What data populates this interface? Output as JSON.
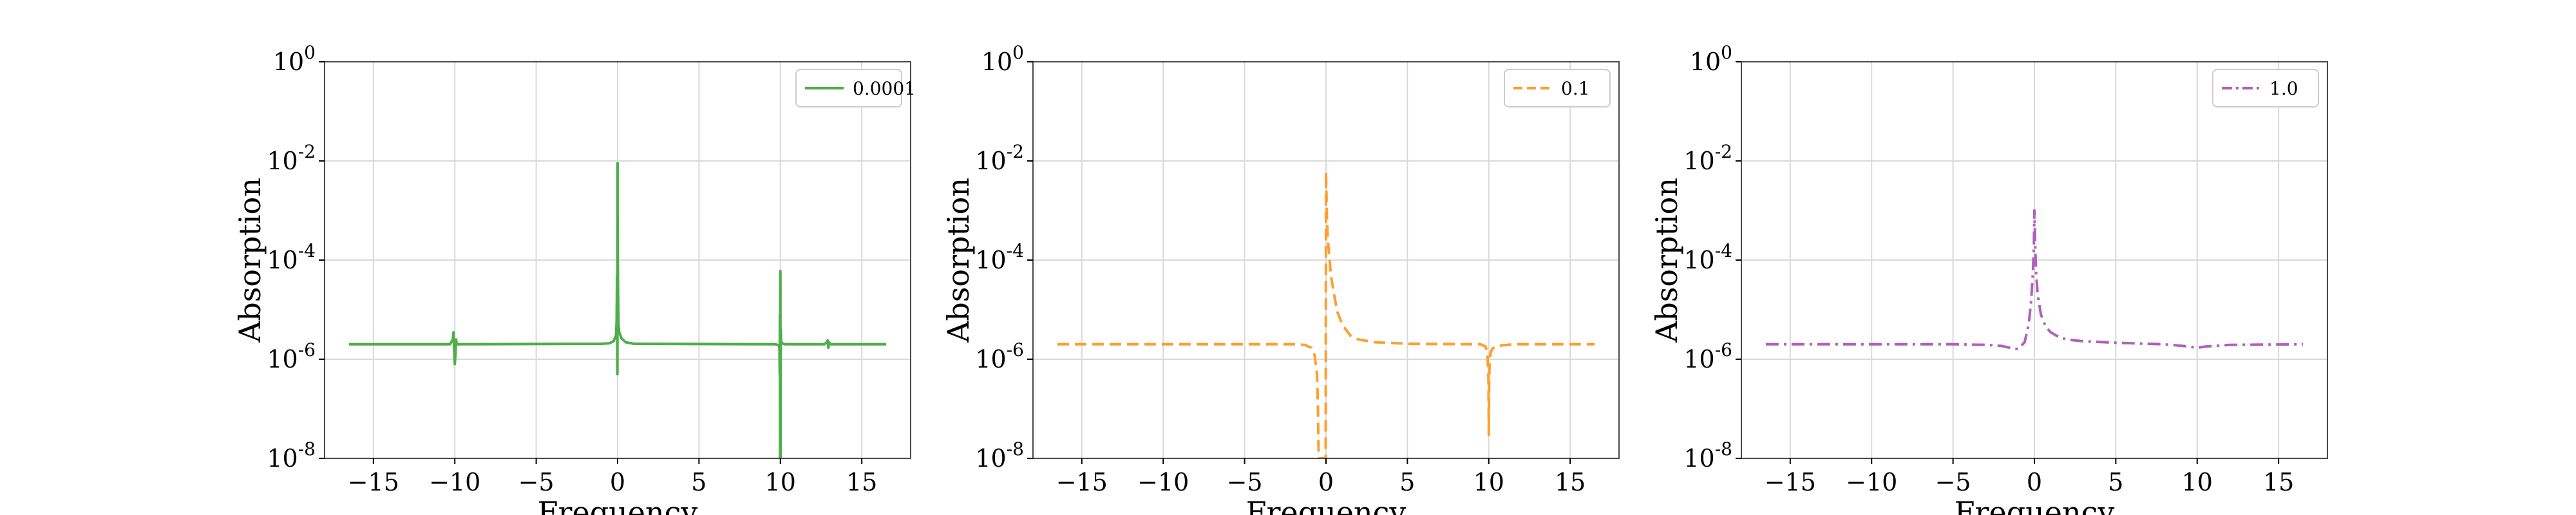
{
  "figure": {
    "background": "#ffffff"
  },
  "chart_data": [
    {
      "type": "line",
      "xlabel": "Frequency",
      "ylabel": "Absorption",
      "xlim": [
        -18,
        18
      ],
      "ylim": [
        1e-08,
        1
      ],
      "yscale": "log",
      "xticks": [
        -15,
        -10,
        -5,
        0,
        5,
        10,
        15
      ],
      "xtick_labels": [
        "−15",
        "−10",
        "−5",
        "0",
        "5",
        "10",
        "15"
      ],
      "yticks": [
        1e-08,
        1e-06,
        0.0001,
        0.01,
        1
      ],
      "ytick_labels": [
        {
          "base": "10",
          "exp": "-8"
        },
        {
          "base": "10",
          "exp": "-6"
        },
        {
          "base": "10",
          "exp": "-4"
        },
        {
          "base": "10",
          "exp": "-2"
        },
        {
          "base": "10",
          "exp": "0"
        }
      ],
      "grid": true,
      "legend_position": "top-right",
      "series": [
        {
          "name": "0.0001",
          "color": "#4daf4a",
          "linestyle": "solid",
          "x": [
            -16.5,
            -10.3,
            -10.12,
            -10.08,
            -10.04,
            -10.0,
            -9.96,
            -9.92,
            -9.88,
            -9.7,
            -1.0,
            -0.5,
            -0.25,
            -0.1,
            -0.06,
            -0.03,
            -0.01,
            0.0,
            0.01,
            0.03,
            0.06,
            0.1,
            0.25,
            0.5,
            1.0,
            9.7,
            9.9,
            9.94,
            9.96,
            9.97,
            9.98,
            9.99,
            10.0,
            10.01,
            10.02,
            10.03,
            10.04,
            10.06,
            10.1,
            10.3,
            12.7,
            12.85,
            12.9,
            12.95,
            13.0,
            13.05,
            13.15,
            16.5
          ],
          "y": [
            2e-06,
            2e-06,
            2.5e-06,
            3.5e-06,
            1.5e-06,
            8e-07,
            1.2e-06,
            2.5e-06,
            2e-06,
            2e-06,
            2.05e-06,
            2.1e-06,
            2.3e-06,
            3e-06,
            6e-06,
            5e-05,
            5e-07,
            0.009,
            0.0001,
            2e-05,
            5e-06,
            3.5e-06,
            2.6e-06,
            2.2e-06,
            2.05e-06,
            2e-06,
            1.9e-06,
            1.7e-06,
            5e-07,
            8e-06,
            1e-08,
            1e-05,
            6e-05,
            1e-08,
            1e-06,
            4e-06,
            2.5e-06,
            2.2e-06,
            2.1e-06,
            2e-06,
            2e-06,
            2.2e-06,
            2.4e-06,
            1.7e-06,
            2.2e-06,
            2e-06,
            2e-06,
            2e-06
          ]
        }
      ]
    },
    {
      "type": "line",
      "xlabel": "Frequency",
      "ylabel": "Absorption",
      "xlim": [
        -18,
        18
      ],
      "ylim": [
        1e-08,
        1
      ],
      "yscale": "log",
      "xticks": [
        -15,
        -10,
        -5,
        0,
        5,
        10,
        15
      ],
      "xtick_labels": [
        "−15",
        "−10",
        "−5",
        "0",
        "5",
        "10",
        "15"
      ],
      "yticks": [
        1e-08,
        1e-06,
        0.0001,
        0.01,
        1
      ],
      "ytick_labels": [
        {
          "base": "10",
          "exp": "-8"
        },
        {
          "base": "10",
          "exp": "-6"
        },
        {
          "base": "10",
          "exp": "-4"
        },
        {
          "base": "10",
          "exp": "-2"
        },
        {
          "base": "10",
          "exp": "0"
        }
      ],
      "grid": true,
      "legend_position": "top-right",
      "series": [
        {
          "name": "0.1",
          "color": "#ff9f2e",
          "linestyle": "dashed",
          "x": [
            -16.5,
            -2.0,
            -1.3,
            -0.9,
            -0.7,
            -0.55,
            -0.5,
            -0.45,
            -0.4,
            -0.3,
            -0.15,
            -0.08,
            -0.04,
            -0.02,
            0.0,
            0.05,
            0.1,
            0.2,
            0.3,
            0.5,
            0.7,
            1.0,
            1.5,
            2.0,
            3.0,
            5.0,
            9.5,
            9.8,
            9.9,
            9.95,
            9.98,
            10.0,
            10.02,
            10.05,
            10.1,
            10.2,
            10.4,
            10.8,
            11.5,
            16.5
          ],
          "y": [
            2e-06,
            2e-06,
            1.95e-06,
            1.7e-06,
            1.2e-06,
            5e-07,
            1.2e-07,
            1e-08,
            1e-08,
            1e-08,
            1e-08,
            1e-08,
            1e-08,
            1e-08,
            0.006,
            0.0009,
            0.0003,
            0.00012,
            5e-05,
            2e-05,
            9e-06,
            5e-06,
            3e-06,
            2.5e-06,
            2.2e-06,
            2.05e-06,
            2e-06,
            1.8e-06,
            1.4e-06,
            8e-07,
            4e-07,
            3e-08,
            3e-07,
            8e-07,
            1.3e-06,
            1.6e-06,
            1.8e-06,
            1.9e-06,
            2e-06,
            2e-06
          ]
        }
      ]
    },
    {
      "type": "line",
      "xlabel": "Frequency",
      "ylabel": "Absorption",
      "xlim": [
        -18,
        18
      ],
      "ylim": [
        1e-08,
        1
      ],
      "yscale": "log",
      "xticks": [
        -15,
        -10,
        -5,
        0,
        5,
        10,
        15
      ],
      "xtick_labels": [
        "−15",
        "−10",
        "−5",
        "0",
        "5",
        "10",
        "15"
      ],
      "yticks": [
        1e-08,
        1e-06,
        0.0001,
        0.01,
        1
      ],
      "ytick_labels": [
        {
          "base": "10",
          "exp": "-8"
        },
        {
          "base": "10",
          "exp": "-6"
        },
        {
          "base": "10",
          "exp": "-4"
        },
        {
          "base": "10",
          "exp": "-2"
        },
        {
          "base": "10",
          "exp": "0"
        }
      ],
      "grid": true,
      "legend_position": "top-right",
      "series": [
        {
          "name": "1.0",
          "color": "#b061b9",
          "linestyle": "dashdot",
          "x": [
            -16.5,
            -5.0,
            -3.0,
            -2.0,
            -1.5,
            -1.0,
            -0.6,
            -0.35,
            -0.2,
            -0.1,
            -0.03,
            0.0,
            0.05,
            0.1,
            0.2,
            0.4,
            0.7,
            1.0,
            1.5,
            2.0,
            3.0,
            5.0,
            8.0,
            9.5,
            10.0,
            10.5,
            12.0,
            16.5
          ],
          "y": [
            2e-06,
            2e-06,
            1.95e-06,
            1.85e-06,
            1.7e-06,
            1.6e-06,
            2.2e-06,
            5e-06,
            1.5e-05,
            5e-05,
            0.0002,
            0.001,
            0.0002,
            6e-05,
            2e-05,
            8e-06,
            4.5e-06,
            3.5e-06,
            2.8e-06,
            2.5e-06,
            2.3e-06,
            2.15e-06,
            2e-06,
            1.8e-06,
            1.7e-06,
            1.8e-06,
            1.95e-06,
            2e-06
          ]
        }
      ]
    }
  ]
}
